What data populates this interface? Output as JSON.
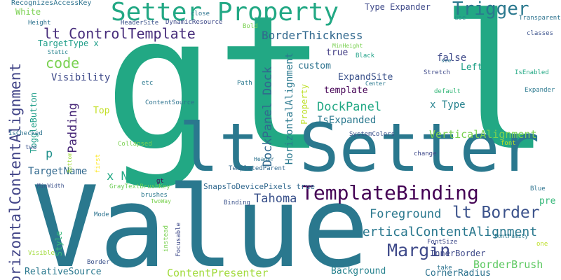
{
  "words": [
    {
      "text": "gt lt",
      "color": "#22a884"
    },
    {
      "text": "Value",
      "color": "#2a788e"
    },
    {
      "text": "lt Setter",
      "color": "#2a788e"
    },
    {
      "text": "Setter Property",
      "color": "#22a884"
    },
    {
      "text": "TemplateBinding",
      "color": "#440154"
    },
    {
      "text": "HorizontalContentAlignment",
      "color": "#414487"
    },
    {
      "text": "lt ControlTemplate",
      "color": "#472d7b"
    },
    {
      "text": "Trigger",
      "color": "#2a788e"
    },
    {
      "text": "lt Border",
      "color": "#3b528b"
    },
    {
      "text": "Margin",
      "color": "#3e4989"
    },
    {
      "text": "VerticalContentAlignment",
      "color": "#2a788e"
    },
    {
      "text": "DockPanel",
      "color": "#22a884"
    },
    {
      "text": "code",
      "color": "#7ad151"
    },
    {
      "text": "DockPanel Dock",
      "color": "#31688e"
    },
    {
      "text": "BorderThickness",
      "color": "#31688e"
    },
    {
      "text": "HorizontalAlignment",
      "color": "#2a788e"
    },
    {
      "text": "VerticalAlignment",
      "color": "#7ad151"
    },
    {
      "text": "x Name",
      "color": "#22a884"
    },
    {
      "text": "Foreground",
      "color": "#2a788e"
    },
    {
      "text": "Padding",
      "color": "#482878"
    },
    {
      "text": "Tahoma",
      "color": "#3b528b"
    },
    {
      "text": "IsExpanded",
      "color": "#2a788e"
    },
    {
      "text": "Visibility",
      "color": "#3e4989"
    },
    {
      "text": "BorderBrush",
      "color": "#5ec962"
    },
    {
      "text": "ContentPresenter",
      "color": "#a0da39"
    },
    {
      "text": "TargetName",
      "color": "#31688e"
    },
    {
      "text": "x Type",
      "color": "#26828e"
    },
    {
      "text": "ExpandSite",
      "color": "#3b528b"
    },
    {
      "text": "false",
      "color": "#3e4989"
    },
    {
      "text": "Left",
      "color": "#1fa187"
    },
    {
      "text": "template",
      "color": "#440154"
    },
    {
      "text": "custom",
      "color": "#2c728e"
    },
    {
      "text": "true",
      "color": "#433e85"
    },
    {
      "text": "Property",
      "color": "#bddf26"
    },
    {
      "text": "Style",
      "color": "#35b779"
    },
    {
      "text": "Background",
      "color": "#26828e"
    },
    {
      "text": "RelativeSource",
      "color": "#2a788e"
    },
    {
      "text": "InnerBorder",
      "color": "#3e4989"
    },
    {
      "text": "CornerRadius",
      "color": "#2c728e"
    },
    {
      "text": "White",
      "color": "#7ad151"
    },
    {
      "text": "TargetType x",
      "color": "#1f9e89"
    },
    {
      "text": "Type Expander",
      "color": "#3e4989"
    },
    {
      "text": "ToggleButton",
      "color": "#1f9e89"
    },
    {
      "text": "Top",
      "color": "#c2df23"
    },
    {
      "text": "pre",
      "color": "#35b779"
    },
    {
      "text": "p",
      "color": "#21918c"
    },
    {
      "text": "SnapsToDevicePixels true",
      "color": "#31688e"
    },
    {
      "text": "RecognizesAccessKey",
      "color": "#2c728e"
    },
    {
      "text": "Height",
      "color": "#2c728e"
    },
    {
      "text": "HeaderSite",
      "color": "#3b528b"
    },
    {
      "text": "DynamicResource",
      "color": "#3e4989"
    },
    {
      "text": "close",
      "color": "#2c728e"
    },
    {
      "text": "Transparent",
      "color": "#2c728e"
    },
    {
      "text": "Bold",
      "color": "#7ad151"
    },
    {
      "text": "use",
      "color": "#21918c"
    },
    {
      "text": "classes",
      "color": "#3b528b"
    },
    {
      "text": "MinHeight",
      "color": "#7ad151"
    },
    {
      "text": "Black",
      "color": "#1fa187"
    },
    {
      "text": "Static",
      "color": "#26828e"
    },
    {
      "text": "Path",
      "color": "#2a788e"
    },
    {
      "text": "etc",
      "color": "#2a788e"
    },
    {
      "text": "ContentSource",
      "color": "#2c728e"
    },
    {
      "text": "Center",
      "color": "#2a788e"
    },
    {
      "text": "see",
      "color": "#2c728e"
    },
    {
      "text": "Stretch",
      "color": "#3e4989"
    },
    {
      "text": "IsEnabled",
      "color": "#22a884"
    },
    {
      "text": "default",
      "color": "#35b779"
    },
    {
      "text": "Expander",
      "color": "#2a788e"
    },
    {
      "text": "SystemColors",
      "color": "#3b528b"
    },
    {
      "text": "font",
      "color": "#bddf26"
    },
    {
      "text": "IsChecked",
      "color": "#2c728e"
    },
    {
      "text": "Collapsed",
      "color": "#7ad151"
    },
    {
      "text": "two",
      "color": "#3b528b"
    },
    {
      "text": "Bottom",
      "color": "#a0da39"
    },
    {
      "text": "first",
      "color": "#fde725"
    },
    {
      "text": "Header",
      "color": "#2c728e"
    },
    {
      "text": "TemplatedParent",
      "color": "#31688e"
    },
    {
      "text": "change",
      "color": "#3e4989"
    },
    {
      "text": "MinWidth",
      "color": "#3b528b"
    },
    {
      "text": "GrayTextBrushKey",
      "color": "#6ece58"
    },
    {
      "text": "gt",
      "color": "#440154"
    },
    {
      "text": "brushes",
      "color": "#2a788e"
    },
    {
      "text": "TwoWay",
      "color": "#7ad151"
    },
    {
      "text": "Binding",
      "color": "#3b528b"
    },
    {
      "text": "Blue",
      "color": "#2c728e"
    },
    {
      "text": "Mode",
      "color": "#2c728e"
    },
    {
      "text": "instead",
      "color": "#7ad151"
    },
    {
      "text": "Focusable",
      "color": "#3e4989"
    },
    {
      "text": "FontFamily",
      "color": "#2a788e"
    },
    {
      "text": "FontSize",
      "color": "#3e4989"
    },
    {
      "text": "one",
      "color": "#bddf26"
    },
    {
      "text": "Visible",
      "color": "#a0da39"
    },
    {
      "text": "Border",
      "color": "#3b528b"
    },
    {
      "text": "take",
      "color": "#2c728e"
    }
  ]
}
